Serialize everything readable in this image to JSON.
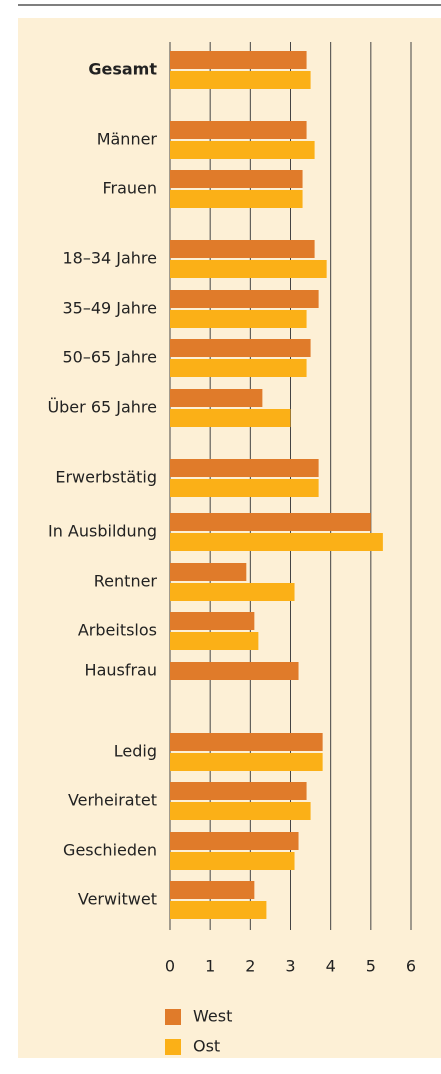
{
  "chart_data": {
    "type": "barh",
    "categories": [
      "Gesamt",
      "Männer",
      "Frauen",
      "18–34 Jahre",
      "35–49 Jahre",
      "50–65 Jahre",
      "Über 65 Jahre",
      "Erwerbstätig",
      "In Ausbildung",
      "Rentner",
      "Arbeitslos",
      "Hausfrau",
      "Ledig",
      "Verheiratet",
      "Geschieden",
      "Verwitwet"
    ],
    "series": [
      {
        "name": "West",
        "color": "#e07b2a",
        "values": [
          3.4,
          3.4,
          3.3,
          3.6,
          3.7,
          3.5,
          2.3,
          3.7,
          5.0,
          1.9,
          2.1,
          3.2,
          3.8,
          3.4,
          3.2,
          2.1
        ]
      },
      {
        "name": "Ost",
        "color": "#fbb017",
        "values": [
          3.5,
          3.6,
          3.3,
          3.9,
          3.4,
          3.4,
          3.0,
          3.7,
          5.3,
          3.1,
          2.2,
          null,
          3.8,
          3.5,
          3.1,
          2.4
        ]
      }
    ],
    "xlim": [
      0,
      6
    ],
    "xticks": [
      0,
      1,
      2,
      3,
      4,
      5,
      6
    ],
    "grid": true,
    "legend": "bottom"
  }
}
